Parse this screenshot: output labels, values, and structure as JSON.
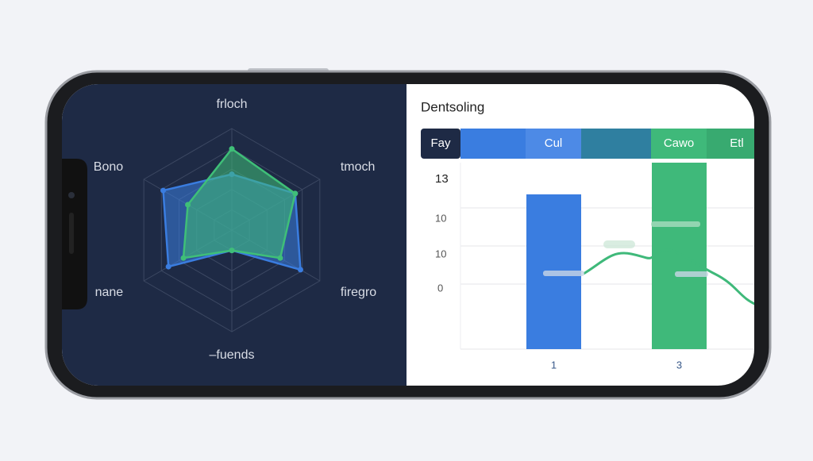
{
  "radar": {
    "axes": [
      "frloch",
      "tmoch",
      "firegro",
      "–fuends",
      "nane",
      "Bono"
    ],
    "rlim": [
      0,
      1
    ],
    "series": [
      {
        "color": "#3a7de0",
        "values": [
          0.55,
          0.72,
          0.78,
          0.2,
          0.72,
          0.78
        ]
      },
      {
        "color": "#3fbf78",
        "values": [
          0.8,
          0.72,
          0.55,
          0.2,
          0.55,
          0.5
        ]
      }
    ]
  },
  "panel": {
    "title": "Dentsoling",
    "tabs": [
      "Fay",
      "Cul",
      "Cawo",
      "Etl"
    ],
    "y_labels": [
      "13",
      "10",
      "10",
      "0"
    ],
    "bars": {
      "categories": [
        "1",
        "3"
      ],
      "values": [
        0.83,
        1.0
      ],
      "colors": [
        "#3a7de0",
        "#3fb97a"
      ],
      "ylim": [
        0,
        1
      ]
    }
  }
}
